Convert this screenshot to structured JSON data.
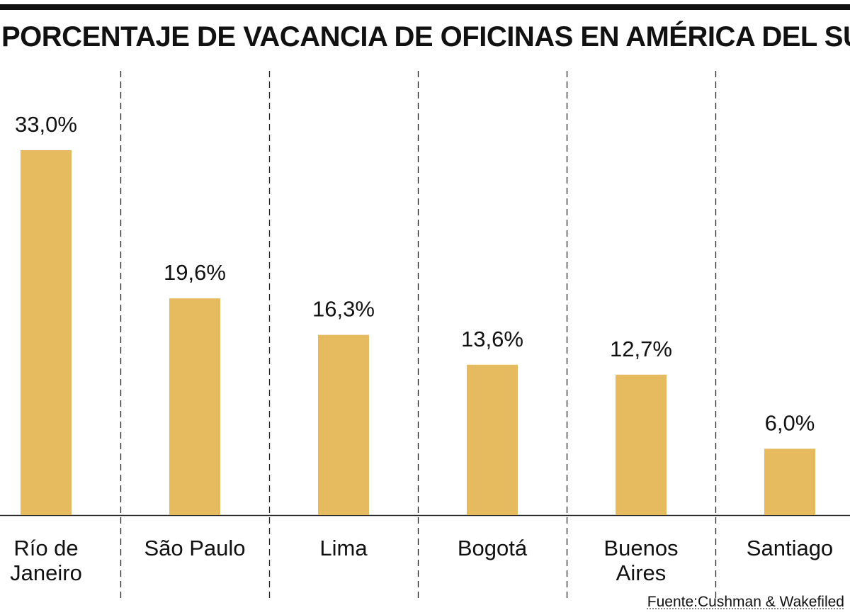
{
  "title": "PORCENTAJE DE VACANCIA DE OFICINAS EN AMÉRICA DEL SUR",
  "source": "Fuente:Cushman & Wakefiled",
  "colors": {
    "bar": "#E6BA5E",
    "text": "#111111",
    "divider": "#222222"
  },
  "chart_data": {
    "type": "bar",
    "title": "PORCENTAJE DE VACANCIA DE OFICINAS EN AMÉRICA DEL SUR",
    "categories": [
      "Río de Janeiro",
      "São Paulo",
      "Lima",
      "Bogotá",
      "Buenos Aires",
      "Santiago"
    ],
    "category_lines": [
      [
        "Río de",
        "Janeiro"
      ],
      [
        "São Paulo"
      ],
      [
        "Lima"
      ],
      [
        "Bogotá"
      ],
      [
        "Buenos",
        "Aires"
      ],
      [
        "Santiago"
      ]
    ],
    "values": [
      33.0,
      19.6,
      16.3,
      13.6,
      12.7,
      6.0
    ],
    "value_labels": [
      "33,0%",
      "19,6%",
      "16,3%",
      "13,6%",
      "12,7%",
      "6,0%"
    ],
    "unit": "%",
    "ylim": [
      0,
      33
    ],
    "grid": false,
    "legend": "none"
  }
}
